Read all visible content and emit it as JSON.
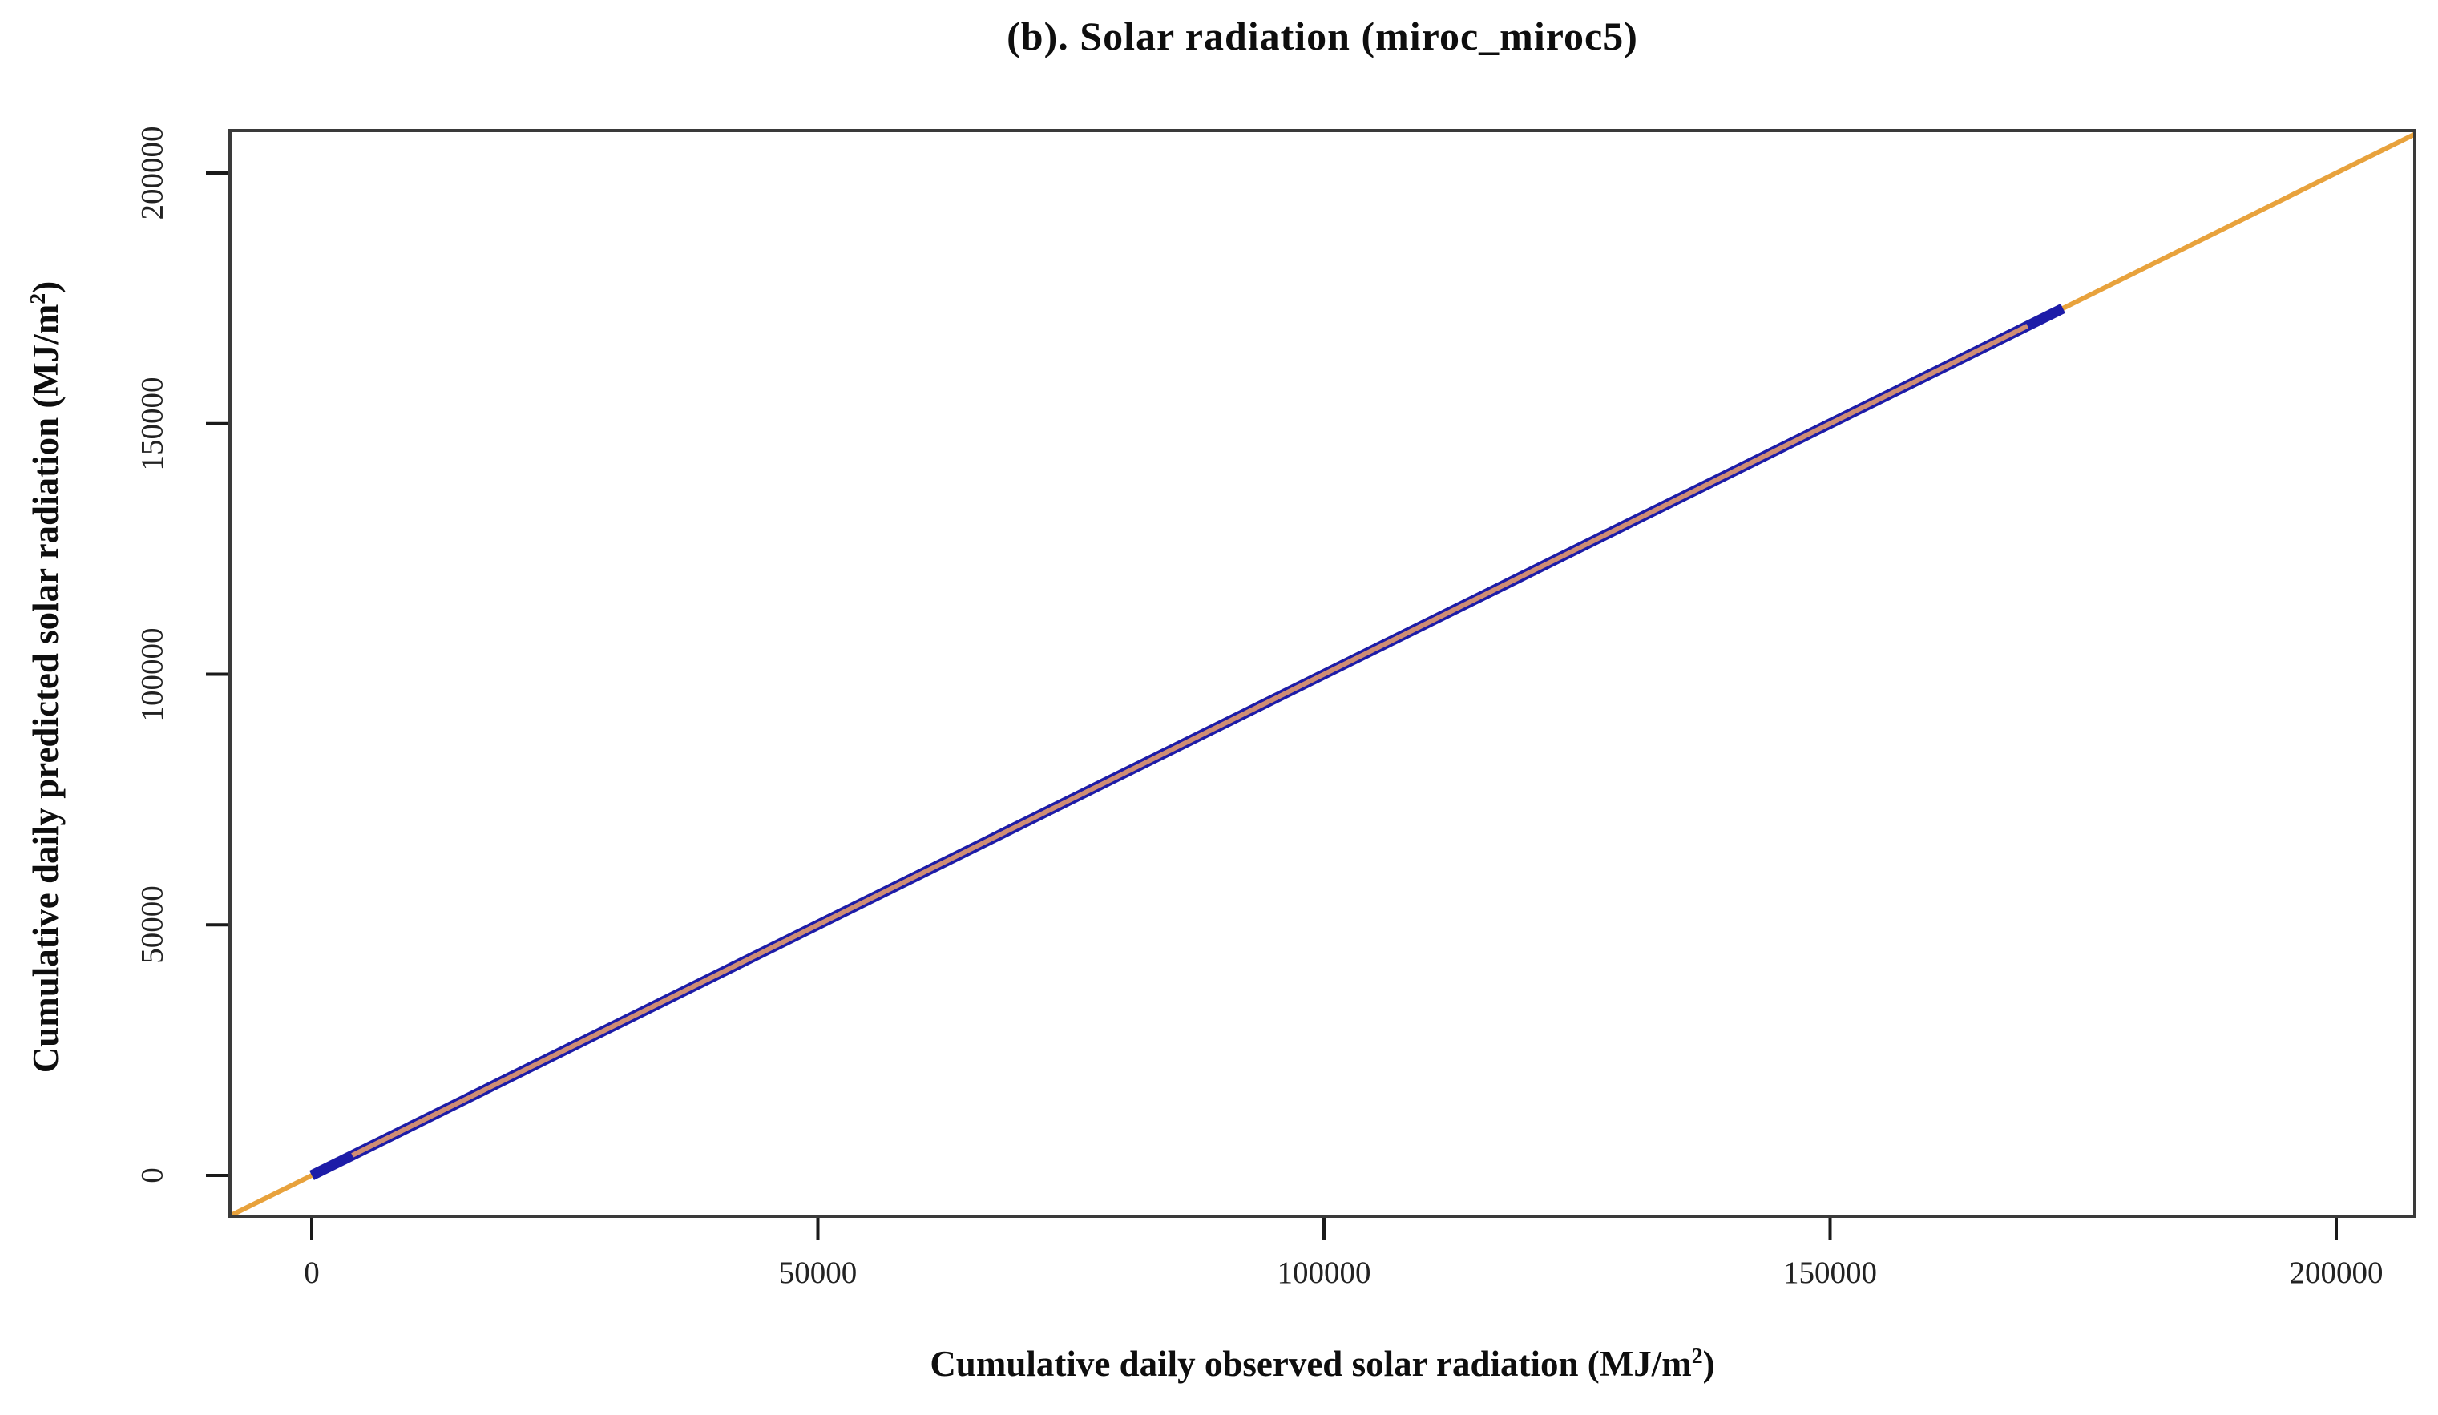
{
  "title": "(b). Solar radiation (miroc_miroc5)",
  "chart_data": {
    "type": "line",
    "title": "(b). Solar radiation (miroc_miroc5)",
    "xlabel": {
      "prefix": "Cumulative daily observed solar radiation (MJ/m",
      "sup": "2",
      "suffix": ")"
    },
    "ylabel": {
      "prefix": "Cumulative daily predicted solar radiation (MJ/m",
      "sup": "2",
      "suffix": ")"
    },
    "x_ticks": {
      "values": [
        0,
        50000,
        100000,
        150000,
        200000
      ],
      "labels": [
        "0",
        "50000",
        "100000",
        "150000",
        "200000"
      ]
    },
    "y_ticks": {
      "values": [
        0,
        50000,
        100000,
        150000,
        200000
      ],
      "labels": [
        "0",
        "50000",
        "100000",
        "150000",
        "200000"
      ]
    },
    "xlim": [
      -8150,
      207900
    ],
    "ylim": [
      -8150,
      207900
    ],
    "grid": false,
    "legend": null,
    "series": [
      {
        "name": "one-to-one-reference-line",
        "type": "abline",
        "slope": 1,
        "intercept": 0,
        "color": "#E8A23C",
        "width": 6
      },
      {
        "name": "cumulative-predicted-vs-observed",
        "type": "segment",
        "points": [
          [
            0,
            0
          ],
          [
            173000,
            173000
          ]
        ],
        "color": "#1D1CA8",
        "width": 13
      }
    ],
    "overlap_highlight": {
      "color": "#CF8D74",
      "from": 4000,
      "to": 169500,
      "width": 6
    }
  }
}
